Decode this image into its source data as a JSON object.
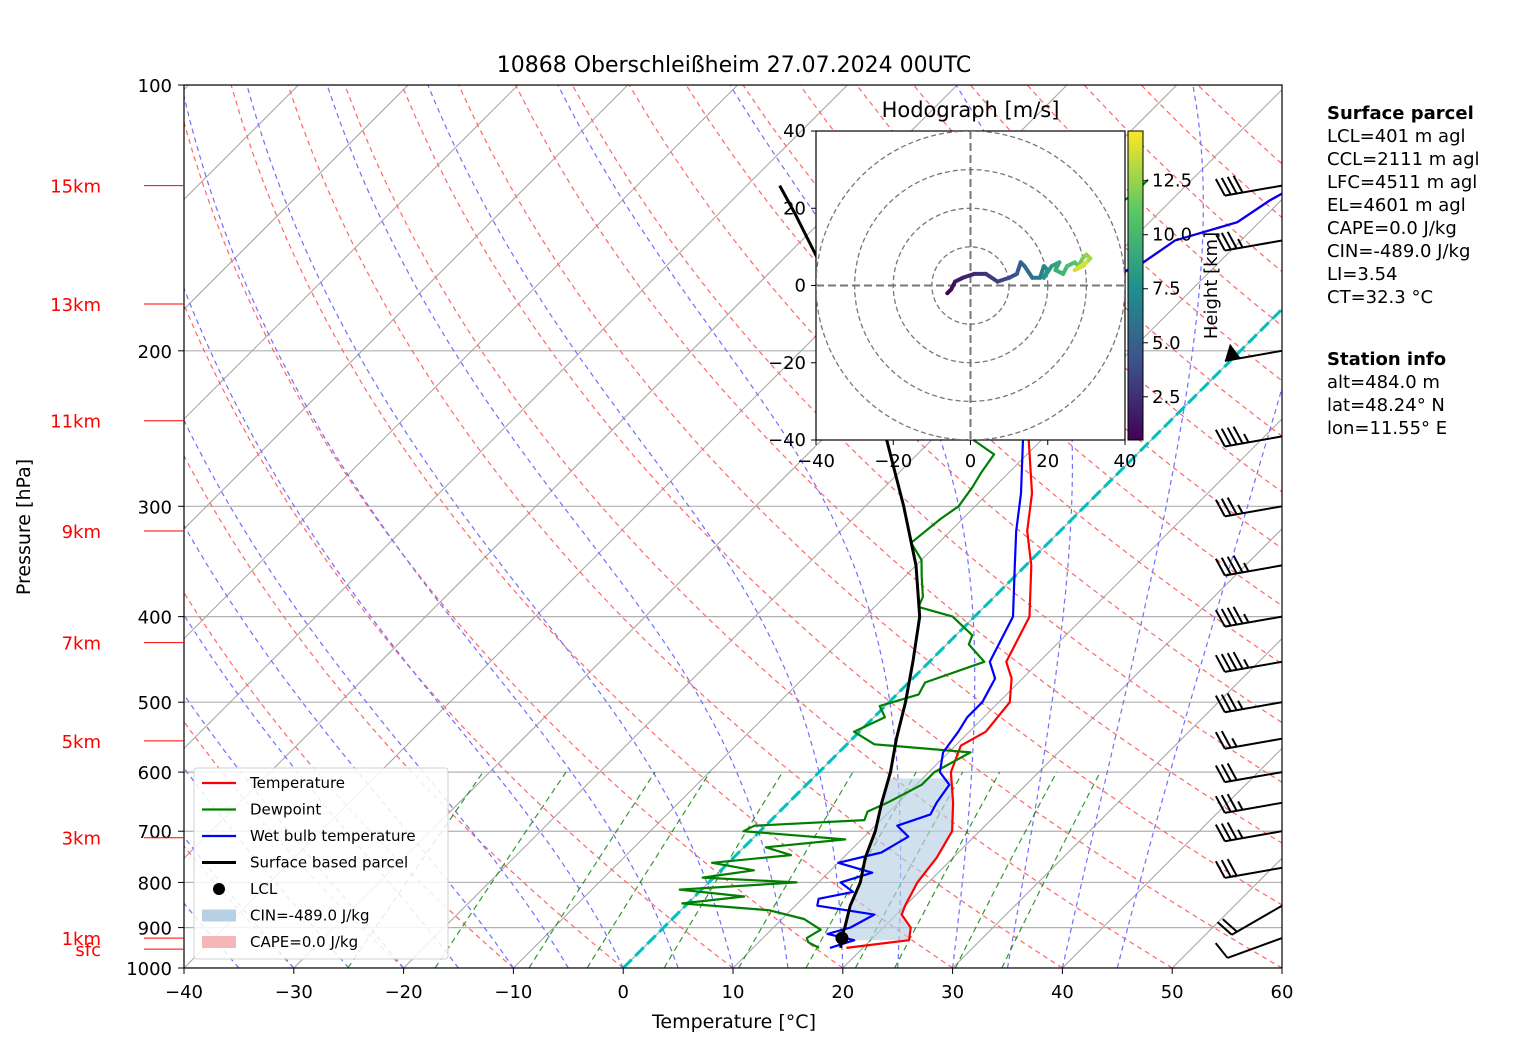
{
  "chart_data": {
    "type": "skew-t",
    "title": "10868 Oberschleißheim 27.07.2024 00UTC",
    "xlabel": "Temperature [°C]",
    "ylabel": "Pressure [hPa]",
    "xlim": [
      -40,
      60
    ],
    "ylim": [
      1000,
      100
    ],
    "xticks": [
      "−40",
      "−30",
      "−20",
      "−10",
      "0",
      "10",
      "20",
      "30",
      "40",
      "50",
      "60"
    ],
    "yticks": [
      "100",
      "200",
      "300",
      "400",
      "500",
      "600",
      "700",
      "800",
      "900",
      "1000"
    ],
    "height_labels": [
      {
        "label": "sfc",
        "p": 952
      },
      {
        "label": "1km",
        "p": 925
      },
      {
        "label": "3km",
        "p": 712
      },
      {
        "label": "5km",
        "p": 553
      },
      {
        "label": "7km",
        "p": 428
      },
      {
        "label": "9km",
        "p": 320
      },
      {
        "label": "11km",
        "p": 240
      },
      {
        "label": "13km",
        "p": 177
      },
      {
        "label": "15km",
        "p": 130
      }
    ],
    "series": [
      {
        "name": "Temperature",
        "color": "#ff0000",
        "points": [
          [
            949,
            18.5
          ],
          [
            930,
            23.5
          ],
          [
            900,
            22.5
          ],
          [
            870,
            20.5
          ],
          [
            850,
            20.0
          ],
          [
            800,
            19.0
          ],
          [
            750,
            18.5
          ],
          [
            700,
            17.5
          ],
          [
            650,
            15.0
          ],
          [
            600,
            12.0
          ],
          [
            560,
            10.5
          ],
          [
            540,
            11.5
          ],
          [
            500,
            11.0
          ],
          [
            470,
            9.0
          ],
          [
            450,
            7.0
          ],
          [
            400,
            5.0
          ],
          [
            350,
            0.5
          ],
          [
            320,
            -3.0
          ],
          [
            290,
            -6.0
          ],
          [
            250,
            -11.5
          ],
          [
            220,
            -16.0
          ],
          [
            200,
            -18.0
          ],
          [
            185,
            -21.0
          ],
          [
            175,
            -22.0
          ],
          [
            168,
            -19.0
          ],
          [
            160,
            -17.0
          ],
          [
            150,
            -16.0
          ],
          [
            143,
            -12.0
          ],
          [
            135,
            -11.0
          ],
          [
            128,
            -9.5
          ]
        ]
      },
      {
        "name": "Dewpoint",
        "color": "#008000",
        "points": [
          [
            949,
            16.0
          ],
          [
            935,
            14.5
          ],
          [
            925,
            14.0
          ],
          [
            905,
            14.5
          ],
          [
            880,
            12.0
          ],
          [
            860,
            8.0
          ],
          [
            845,
            -0.5
          ],
          [
            830,
            4.5
          ],
          [
            815,
            -2.0
          ],
          [
            800,
            8.0
          ],
          [
            790,
            -1.0
          ],
          [
            775,
            3.0
          ],
          [
            760,
            -1.5
          ],
          [
            745,
            5.0
          ],
          [
            730,
            2.0
          ],
          [
            715,
            8.5
          ],
          [
            700,
            -1.5
          ],
          [
            690,
            -1.0
          ],
          [
            680,
            8.5
          ],
          [
            665,
            8.0
          ],
          [
            650,
            9.0
          ],
          [
            620,
            10.5
          ],
          [
            600,
            10.5
          ],
          [
            570,
            12.0
          ],
          [
            558,
            2.5
          ],
          [
            540,
            -0.5
          ],
          [
            520,
            1.0
          ],
          [
            505,
            -0.5
          ],
          [
            490,
            2.0
          ],
          [
            475,
            1.5
          ],
          [
            450,
            5.0
          ],
          [
            430,
            2.0
          ],
          [
            420,
            1.5
          ],
          [
            400,
            -2.0
          ],
          [
            390,
            -6.0
          ],
          [
            380,
            -6.5
          ],
          [
            360,
            -8.5
          ],
          [
            345,
            -10.0
          ],
          [
            330,
            -12.5
          ],
          [
            310,
            -12.0
          ],
          [
            300,
            -11.5
          ],
          [
            285,
            -12.0
          ],
          [
            275,
            -12.5
          ],
          [
            262,
            -13.0
          ],
          [
            250,
            -17.0
          ],
          [
            235,
            -17.0
          ],
          [
            220,
            -18.0
          ],
          [
            205,
            -16.5
          ],
          [
            195,
            -17.5
          ],
          [
            185,
            -19.5
          ],
          [
            178,
            -22.5
          ],
          [
            170,
            -25.5
          ],
          [
            162,
            -29.0
          ],
          [
            155,
            -29.5
          ],
          [
            148,
            -27.0
          ],
          [
            140,
            -25.0
          ],
          [
            133,
            -24.0
          ],
          [
            128,
            -24.0
          ]
        ]
      },
      {
        "name": "Wet bulb temperature",
        "color": "#0000ff",
        "points": [
          [
            949,
            17.0
          ],
          [
            930,
            18.5
          ],
          [
            915,
            15.5
          ],
          [
            900,
            17.0
          ],
          [
            870,
            18.0
          ],
          [
            850,
            12.0
          ],
          [
            835,
            11.5
          ],
          [
            820,
            14.0
          ],
          [
            800,
            12.0
          ],
          [
            780,
            14.0
          ],
          [
            760,
            10.0
          ],
          [
            740,
            13.0
          ],
          [
            710,
            14.0
          ],
          [
            690,
            12.0
          ],
          [
            670,
            14.0
          ],
          [
            650,
            13.5
          ],
          [
            620,
            13.0
          ],
          [
            600,
            11.0
          ],
          [
            570,
            9.5
          ],
          [
            540,
            9.0
          ],
          [
            520,
            8.5
          ],
          [
            500,
            8.5
          ],
          [
            470,
            7.5
          ],
          [
            450,
            5.5
          ],
          [
            400,
            3.5
          ],
          [
            350,
            -1.0
          ],
          [
            320,
            -4.0
          ],
          [
            290,
            -7.0
          ],
          [
            250,
            -12.0
          ],
          [
            220,
            -16.0
          ],
          [
            200,
            -18.0
          ],
          [
            185,
            -20.5
          ],
          [
            175,
            -22.0
          ],
          [
            168,
            -19.5
          ],
          [
            160,
            -17.0
          ],
          [
            150,
            -16.0
          ],
          [
            143,
            -12.0
          ],
          [
            135,
            -11.0
          ],
          [
            128,
            -9.5
          ]
        ]
      },
      {
        "name": "Surface based parcel",
        "color": "#000000",
        "points": [
          [
            949,
            18.0
          ],
          [
            928,
            17.2
          ],
          [
            900,
            16.5
          ],
          [
            850,
            15.0
          ],
          [
            800,
            13.8
          ],
          [
            750,
            12.0
          ],
          [
            700,
            10.5
          ],
          [
            650,
            8.5
          ],
          [
            600,
            6.5
          ],
          [
            550,
            4.0
          ],
          [
            500,
            1.5
          ],
          [
            450,
            -1.5
          ],
          [
            400,
            -5.0
          ],
          [
            350,
            -10.0
          ],
          [
            300,
            -16.5
          ],
          [
            250,
            -24.5
          ],
          [
            200,
            -35.0
          ],
          [
            180,
            -40.0
          ],
          [
            160,
            -46.0
          ],
          [
            140,
            -53.0
          ],
          [
            130,
            -57.0
          ]
        ]
      }
    ],
    "lcl": {
      "label": "LCL",
      "p": 925,
      "t": 17.2
    },
    "cin_area": {
      "label": "CIN=-489.0 J/kg"
    },
    "cape_area": {
      "label": "CAPE=0.0 J/kg"
    },
    "legend_location": "lower-left",
    "wind_barbs": [
      {
        "p": 925,
        "speed_kt": 12,
        "dir": 250
      },
      {
        "p": 850,
        "speed_kt": 20,
        "dir": 240
      },
      {
        "p": 770,
        "speed_kt": 30,
        "dir": 260
      },
      {
        "p": 700,
        "speed_kt": 35,
        "dir": 260
      },
      {
        "p": 650,
        "speed_kt": 35,
        "dir": 260
      },
      {
        "p": 600,
        "speed_kt": 30,
        "dir": 260
      },
      {
        "p": 550,
        "speed_kt": 25,
        "dir": 260
      },
      {
        "p": 500,
        "speed_kt": 35,
        "dir": 260
      },
      {
        "p": 450,
        "speed_kt": 45,
        "dir": 260
      },
      {
        "p": 400,
        "speed_kt": 45,
        "dir": 260
      },
      {
        "p": 350,
        "speed_kt": 45,
        "dir": 260
      },
      {
        "p": 300,
        "speed_kt": 35,
        "dir": 260
      },
      {
        "p": 250,
        "speed_kt": 45,
        "dir": 260
      },
      {
        "p": 200,
        "speed_kt": 50,
        "dir": 260
      },
      {
        "p": 150,
        "speed_kt": 35,
        "dir": 260
      },
      {
        "p": 130,
        "speed_kt": 40,
        "dir": 260
      }
    ],
    "hodograph": {
      "title": "Hodograph [m/s]",
      "xlim": [
        -40,
        40
      ],
      "ylim": [
        -40,
        40
      ],
      "xticks": [
        "−40",
        "−20",
        "0",
        "20",
        "40"
      ],
      "yticks": [
        "40",
        "20",
        "0",
        "−20",
        "−40"
      ],
      "rings": [
        10,
        20,
        30,
        40
      ],
      "colorbar_label": "Height [km]",
      "colorbar_ticks": [
        "2.5",
        "5.0",
        "7.5",
        "10.0",
        "12.5"
      ],
      "colorbar_range": [
        0.5,
        14.8
      ],
      "points": [
        [
          -6,
          -2,
          0.5
        ],
        [
          -5,
          -1,
          1
        ],
        [
          -4,
          1,
          1.5
        ],
        [
          -2,
          2,
          2
        ],
        [
          1,
          3,
          2.5
        ],
        [
          4,
          3,
          3
        ],
        [
          7,
          1,
          3.5
        ],
        [
          10,
          2,
          4
        ],
        [
          12,
          3,
          4.5
        ],
        [
          13,
          6,
          5
        ],
        [
          14,
          5,
          5.5
        ],
        [
          16,
          2,
          6
        ],
        [
          18,
          2,
          6.5
        ],
        [
          19,
          5,
          7
        ],
        [
          20,
          4,
          7.5
        ],
        [
          19,
          2,
          8
        ],
        [
          21,
          5,
          8.5
        ],
        [
          23,
          6,
          9
        ],
        [
          22,
          4,
          9.5
        ],
        [
          24,
          3,
          10
        ],
        [
          25,
          5,
          10.5
        ],
        [
          27,
          6,
          11
        ],
        [
          28,
          5,
          11.5
        ],
        [
          29,
          7,
          12
        ],
        [
          30,
          8,
          12.5
        ],
        [
          31,
          7,
          13
        ],
        [
          29,
          5,
          13.5
        ],
        [
          27,
          4,
          14
        ],
        [
          30,
          6,
          14.5
        ]
      ]
    }
  },
  "info_panel": {
    "surface_header": "Surface parcel",
    "surface_lines": [
      "LCL=401 m agl",
      "CCL=2111 m agl",
      "LFC=4511 m agl",
      "EL=4601 m agl",
      "CAPE=0.0 J/kg",
      "CIN=-489.0 J/kg",
      "LI=3.54",
      "CT=32.3 °C"
    ],
    "station_header": "Station info",
    "station_lines": [
      "alt=484.0 m",
      "lat=48.24° N",
      "lon=11.55° E"
    ]
  },
  "colors": {
    "temperature": "#ff0000",
    "dewpoint": "#008000",
    "wetbulb": "#0000ff",
    "parcel": "#000000",
    "isotherm_zero": "#00bfbf",
    "dry_adiabat": "#ff6666",
    "moist_adiabat": "#6f6fff",
    "mixing_ratio": "#008000",
    "cin_fill": "#b7d0e4",
    "cape_fill": "#f4b6b6",
    "height_label": "#ff0000"
  }
}
